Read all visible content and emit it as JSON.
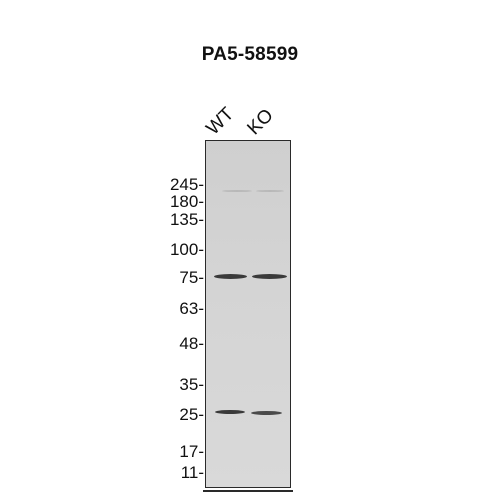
{
  "title": "PA5-58599",
  "lanes": [
    "WT",
    "KO"
  ],
  "markers": [
    "245-",
    "180-",
    "135-",
    "100-",
    "75-",
    "63-",
    "48-",
    "35-",
    "25-",
    "17-",
    "11-"
  ]
}
